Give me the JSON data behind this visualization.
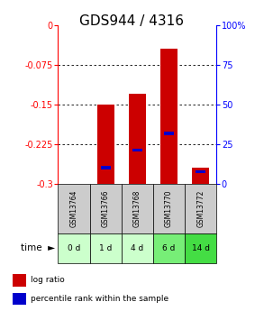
{
  "title": "GDS944 / 4316",
  "categories": [
    "GSM13764",
    "GSM13766",
    "GSM13768",
    "GSM13770",
    "GSM13772"
  ],
  "time_labels": [
    "0 d",
    "1 d",
    "4 d",
    "6 d",
    "14 d"
  ],
  "time_colors": [
    "#ccffcc",
    "#ccffcc",
    "#ccffcc",
    "#77ee77",
    "#44dd44"
  ],
  "log_ratio_top": [
    0.0,
    -0.15,
    -0.13,
    -0.045,
    -0.27
  ],
  "log_ratio_bottom": [
    0.0,
    -0.3,
    -0.3,
    -0.3,
    -0.3
  ],
  "percentile_rank": [
    null,
    -0.27,
    -0.237,
    -0.205,
    -0.278
  ],
  "ylim_left": [
    -0.3,
    0.0
  ],
  "ylim_right": [
    0,
    100
  ],
  "left_ticks": [
    0.0,
    -0.075,
    -0.15,
    -0.225,
    -0.3
  ],
  "right_ticks": [
    100,
    75,
    50,
    25,
    0
  ],
  "bar_color": "#cc0000",
  "dot_color": "#0000cc",
  "bg_color_gsm": "#cccccc",
  "legend_log": "log ratio",
  "legend_pct": "percentile rank within the sample",
  "title_fontsize": 11,
  "tick_fontsize": 7
}
